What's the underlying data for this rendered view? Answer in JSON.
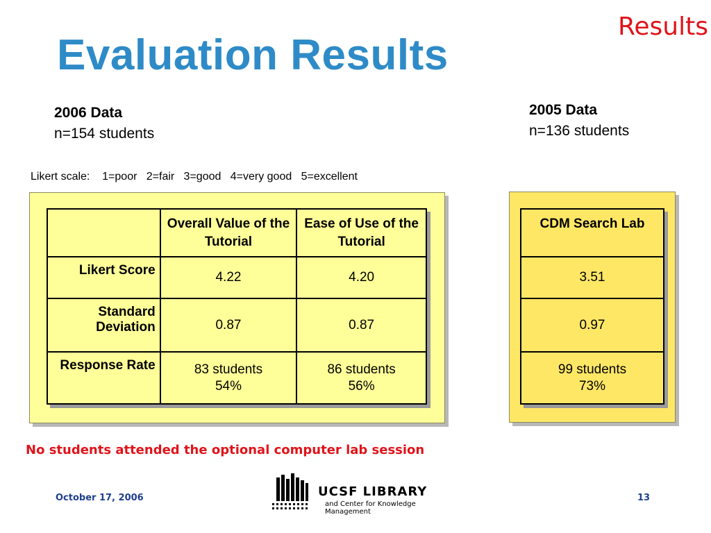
{
  "corner_tag": "Results",
  "title": "Evaluation Results",
  "group_2006": {
    "heading": "2006 Data",
    "count": "n=154 students"
  },
  "group_2005": {
    "heading": "2005 Data",
    "count": "n=136 students"
  },
  "likert_scale": "Likert scale:    1=poor   2=fair   3=good   4=very good   5=excellent",
  "table_2006": {
    "columns": [
      "",
      "Overall Value of the Tutorial",
      "Ease of Use of the Tutorial"
    ],
    "rows": [
      {
        "label": "Likert Score",
        "values": [
          "4.22",
          "4.20"
        ]
      },
      {
        "label": "Standard Deviation",
        "values": [
          "0.87",
          "0.87"
        ]
      },
      {
        "label": "Response Rate",
        "values": [
          [
            "83 students",
            "54%"
          ],
          [
            "86 students",
            "56%"
          ]
        ]
      }
    ]
  },
  "table_2005": {
    "column": "CDM Search Lab",
    "rows": [
      "3.51",
      "0.97",
      [
        "99 students",
        "73%"
      ]
    ]
  },
  "note": "No students attended the optional computer lab session",
  "footer": {
    "date": "October 17, 2006",
    "page": "13",
    "logo_name": "UCSF LIBRARY",
    "logo_sub": "and Center for Knowledge Management"
  },
  "colors": {
    "title": "#2e8bc7",
    "accent_red": "#e0131a",
    "panel_2006": "#ffff99",
    "panel_2005": "#ffe766",
    "footer": "#1f3f8f"
  }
}
